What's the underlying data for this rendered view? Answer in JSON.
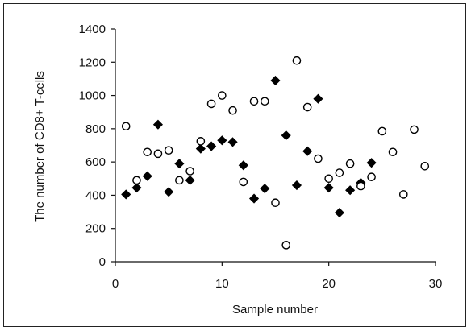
{
  "chart_data": {
    "type": "scatter",
    "title": "",
    "xlabel": "Sample number",
    "ylabel": "The number of CD8+ T-cells",
    "xlim": [
      0,
      30
    ],
    "ylim": [
      0,
      1400
    ],
    "x_ticks": [
      0,
      10,
      20,
      30
    ],
    "y_ticks": [
      0,
      200,
      400,
      600,
      800,
      1000,
      1200,
      1400
    ],
    "x_tick_labels": [
      "0",
      "10",
      "20",
      "30"
    ],
    "y_tick_labels": [
      "0",
      "200",
      "400",
      "600",
      "800",
      "1000",
      "1200",
      "1400"
    ],
    "grid": false,
    "legend": "none",
    "series": [
      {
        "marker": "diamond-filled",
        "color": "#000000",
        "points": [
          [
            1,
            405
          ],
          [
            2,
            445
          ],
          [
            3,
            515
          ],
          [
            4,
            825
          ],
          [
            5,
            420
          ],
          [
            6,
            590
          ],
          [
            7,
            490
          ],
          [
            8,
            680
          ],
          [
            9,
            695
          ],
          [
            10,
            730
          ],
          [
            11,
            720
          ],
          [
            12,
            580
          ],
          [
            13,
            380
          ],
          [
            14,
            440
          ],
          [
            15,
            1090
          ],
          [
            16,
            760
          ],
          [
            17,
            460
          ],
          [
            18,
            665
          ],
          [
            19,
            980
          ],
          [
            20,
            445
          ],
          [
            21,
            295
          ],
          [
            22,
            430
          ],
          [
            23,
            475
          ],
          [
            24,
            595
          ]
        ]
      },
      {
        "marker": "circle-open",
        "color": "#000000",
        "points": [
          [
            1,
            815
          ],
          [
            2,
            490
          ],
          [
            3,
            660
          ],
          [
            4,
            650
          ],
          [
            5,
            670
          ],
          [
            6,
            490
          ],
          [
            7,
            545
          ],
          [
            8,
            725
          ],
          [
            9,
            950
          ],
          [
            10,
            1000
          ],
          [
            11,
            910
          ],
          [
            12,
            480
          ],
          [
            13,
            965
          ],
          [
            14,
            965
          ],
          [
            15,
            355
          ],
          [
            16,
            100
          ],
          [
            17,
            1210
          ],
          [
            18,
            930
          ],
          [
            19,
            620
          ],
          [
            20,
            500
          ],
          [
            21,
            535
          ],
          [
            22,
            590
          ],
          [
            23,
            455
          ],
          [
            24,
            510
          ],
          [
            25,
            785
          ],
          [
            26,
            660
          ],
          [
            27,
            405
          ],
          [
            28,
            795
          ],
          [
            29,
            575
          ]
        ]
      }
    ]
  }
}
